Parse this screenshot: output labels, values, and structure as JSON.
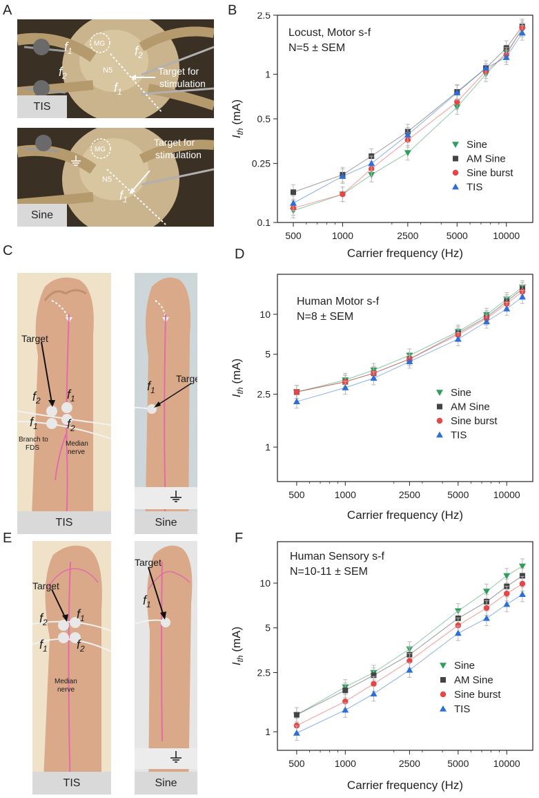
{
  "panels": {
    "a": {
      "letter": "A"
    },
    "b": {
      "letter": "B"
    },
    "c": {
      "letter": "C"
    },
    "d": {
      "letter": "D"
    },
    "e": {
      "letter": "E"
    },
    "f": {
      "letter": "F"
    }
  },
  "photos": {
    "locust_tis": {
      "caption": "TIS",
      "mg": "MG",
      "n5": "N5",
      "target": "Target for",
      "target2": "stimulation",
      "f1": "f",
      "f1_sub": "1",
      "f2": "f",
      "f2_sub": "2"
    },
    "locust_sine": {
      "caption": "Sine",
      "mg": "MG",
      "n5": "N5",
      "target": "Target for",
      "target2": "stimulation",
      "f1": "f",
      "f1_sub": "1"
    },
    "arm_c_tis": {
      "caption": "TIS",
      "target": "Target",
      "branch": "Branch to",
      "branch2": "FDS",
      "median": "Median",
      "median2": "nerve",
      "f": "f",
      "s1": "1",
      "s2": "2"
    },
    "arm_c_sine": {
      "caption": "Sine",
      "target": "Target",
      "f": "f",
      "s1": "1"
    },
    "arm_e_tis": {
      "caption": "TIS",
      "target": "Target",
      "median": "Median",
      "median2": "nerve",
      "f": "f",
      "s1": "1",
      "s2": "2"
    },
    "arm_e_sine": {
      "caption": "Sine",
      "target": "Target",
      "f": "f",
      "s1": "1"
    }
  },
  "chart_data": [
    {
      "id": "B",
      "type": "scatter",
      "scale": "log-log",
      "title": "Locust, Motor s-f",
      "subtitle": "N=5 ± SEM",
      "xlabel": "Carrier frequency (Hz)",
      "ylabel_main": "I",
      "ylabel_sub": "th",
      "ylabel_unit": " (mA)",
      "xlim": [
        400,
        14500
      ],
      "ylim": [
        0.1,
        2.5
      ],
      "xticks": [
        500,
        1000,
        2500,
        5000,
        10000
      ],
      "xtick_labels": [
        "500",
        "1000",
        "2500",
        "5000",
        "10000"
      ],
      "yticks": [
        0.1,
        0.25,
        0.5,
        1,
        2.5
      ],
      "ytick_labels": [
        "0.1",
        "0.25",
        "0.5",
        "1",
        "2.5"
      ],
      "x": [
        500,
        1000,
        1500,
        2500,
        5000,
        7500,
        10000,
        12500
      ],
      "series": [
        {
          "name": "Sine",
          "color": "#2e9e5b",
          "marker": "tri-down",
          "values": [
            0.12,
            0.155,
            0.21,
            0.295,
            0.6,
            1.0,
            1.4,
            2.0
          ]
        },
        {
          "name": "AM Sine",
          "color": "#444444",
          "marker": "square",
          "values": [
            0.16,
            0.21,
            0.28,
            0.41,
            0.76,
            1.1,
            1.5,
            2.1
          ]
        },
        {
          "name": "Sine burst",
          "color": "#e84545",
          "marker": "circle",
          "values": [
            0.125,
            0.155,
            0.23,
            0.36,
            0.65,
            1.05,
            1.35,
            2.05
          ]
        },
        {
          "name": "TIS",
          "color": "#2d6fd6",
          "marker": "tri-up",
          "values": [
            0.135,
            0.205,
            0.25,
            0.39,
            0.75,
            1.1,
            1.3,
            1.9
          ]
        }
      ]
    },
    {
      "id": "D",
      "type": "scatter",
      "scale": "log-log",
      "title": "Human Motor s-f",
      "subtitle": "N=8 ± SEM",
      "xlabel": "Carrier frequency (Hz)",
      "ylabel_main": "I",
      "ylabel_sub": "th",
      "ylabel_unit": " (mA)",
      "xlim": [
        380,
        14500
      ],
      "ylim": [
        0.55,
        20
      ],
      "xticks": [
        500,
        1000,
        2500,
        5000,
        10000
      ],
      "xtick_labels": [
        "500",
        "1000",
        "2500",
        "5000",
        "10000"
      ],
      "yticks": [
        1,
        2.5,
        5,
        10
      ],
      "ytick_labels": [
        "1",
        "2.5",
        "5",
        "10"
      ],
      "x": [
        500,
        1000,
        1500,
        2500,
        5000,
        7500,
        10000,
        12500
      ],
      "series": [
        {
          "name": "Sine",
          "color": "#2e9e5b",
          "marker": "tri-down",
          "values": [
            2.6,
            3.2,
            3.8,
            4.9,
            7.4,
            9.9,
            13.0,
            16.0
          ]
        },
        {
          "name": "AM Sine",
          "color": "#444444",
          "marker": "square",
          "values": [
            2.6,
            3.1,
            3.6,
            4.6,
            7.2,
            9.5,
            12.5,
            15.5
          ]
        },
        {
          "name": "Sine burst",
          "color": "#e84545",
          "marker": "circle",
          "values": [
            2.6,
            3.1,
            3.6,
            4.6,
            7.0,
            9.3,
            12.0,
            14.8
          ]
        },
        {
          "name": "TIS",
          "color": "#2d6fd6",
          "marker": "tri-up",
          "values": [
            2.2,
            2.8,
            3.3,
            4.4,
            6.5,
            8.8,
            11.0,
            13.5
          ]
        }
      ]
    },
    {
      "id": "F",
      "type": "scatter",
      "scale": "log-log",
      "title": "Human Sensory s-f",
      "subtitle": "N=10-11 ± SEM",
      "xlabel": "Carrier frequency (Hz)",
      "ylabel_main": "I",
      "ylabel_sub": "th",
      "ylabel_unit": " (mA)",
      "xlim": [
        380,
        14500
      ],
      "ylim": [
        0.75,
        19
      ],
      "xticks": [
        500,
        1000,
        2500,
        5000,
        10000
      ],
      "xtick_labels": [
        "500",
        "1000",
        "2500",
        "5000",
        "10000"
      ],
      "yticks": [
        1,
        2.5,
        5,
        10
      ],
      "ytick_labels": [
        "1",
        "2.5",
        "5",
        "10"
      ],
      "x": [
        500,
        1000,
        1500,
        2500,
        5000,
        7500,
        10000,
        12500
      ],
      "series": [
        {
          "name": "Sine",
          "color": "#2e9e5b",
          "marker": "tri-down",
          "values": [
            1.3,
            2.0,
            2.5,
            3.6,
            6.5,
            8.8,
            11.2,
            13.0
          ]
        },
        {
          "name": "AM Sine",
          "color": "#444444",
          "marker": "square",
          "values": [
            1.3,
            1.9,
            2.4,
            3.3,
            5.8,
            7.5,
            9.5,
            11.2
          ]
        },
        {
          "name": "Sine burst",
          "color": "#e84545",
          "marker": "circle",
          "values": [
            1.1,
            1.6,
            2.1,
            3.0,
            5.2,
            6.8,
            8.5,
            9.9
          ]
        },
        {
          "name": "TIS",
          "color": "#2d6fd6",
          "marker": "tri-up",
          "values": [
            0.98,
            1.4,
            1.8,
            2.6,
            4.6,
            5.8,
            7.2,
            8.4
          ]
        }
      ]
    }
  ]
}
